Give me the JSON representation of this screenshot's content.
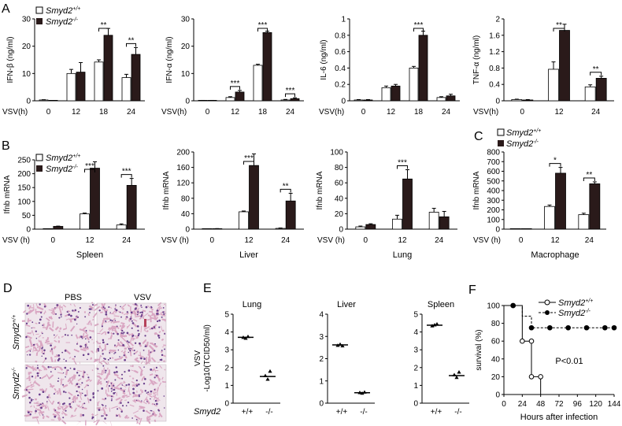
{
  "legend": {
    "wt": "Smyd2",
    "wt_sup": "+/+",
    "ko": "Smyd2",
    "ko_sup": "-/-"
  },
  "panel_letters": [
    "A",
    "B",
    "C",
    "D",
    "E",
    "F"
  ],
  "chart_data": [
    {
      "panel": "A",
      "type": "bar",
      "ylabel": "IFN-β  (ng/ml)",
      "xlabel_prefix": "VSV(h)",
      "categories": [
        "0",
        "12",
        "18",
        "24"
      ],
      "ylim": [
        0,
        30
      ],
      "yticks": [
        0,
        10,
        20,
        30
      ],
      "series": [
        {
          "name": "Smyd2+/+",
          "values": [
            0.3,
            10,
            14.2,
            8.5
          ],
          "errors": [
            0.1,
            1.5,
            0.8,
            1.2
          ]
        },
        {
          "name": "Smyd2-/-",
          "values": [
            0,
            10.5,
            24,
            17
          ],
          "errors": [
            0,
            3.5,
            2.5,
            2.5
          ]
        }
      ],
      "significance": [
        {
          "category": "18",
          "label": "**"
        },
        {
          "category": "24",
          "label": "**"
        }
      ]
    },
    {
      "panel": "A",
      "type": "bar",
      "ylabel": "IFN-α  (ng/ml)",
      "xlabel_prefix": "VSV(h)",
      "categories": [
        "0",
        "12",
        "18",
        "24"
      ],
      "ylim": [
        0,
        30
      ],
      "yticks": [
        0,
        10,
        20,
        30
      ],
      "series": [
        {
          "name": "Smyd2+/+",
          "values": [
            0.1,
            1.2,
            13,
            0.3
          ],
          "errors": [
            0.05,
            0.3,
            0.4,
            0.2
          ]
        },
        {
          "name": "Smyd2-/-",
          "values": [
            0.1,
            3.2,
            25,
            0.8
          ],
          "errors": [
            0.05,
            0.6,
            0.5,
            0.3
          ]
        }
      ],
      "significance": [
        {
          "category": "12",
          "label": "***"
        },
        {
          "category": "18",
          "label": "***"
        },
        {
          "category": "24",
          "label": "***"
        }
      ]
    },
    {
      "panel": "A",
      "type": "bar",
      "ylabel": "IL-6 (ng/ml)",
      "xlabel_prefix": "VSV(h)",
      "categories": [
        "0",
        "12",
        "18",
        "24"
      ],
      "ylim": [
        0,
        1.0
      ],
      "yticks": [
        0,
        0.2,
        0.4,
        0.6,
        0.8,
        1.0
      ],
      "series": [
        {
          "name": "Smyd2+/+",
          "values": [
            0.01,
            0.16,
            0.4,
            0.04
          ],
          "errors": [
            0.005,
            0.02,
            0.02,
            0.01
          ]
        },
        {
          "name": "Smyd2-/-",
          "values": [
            0.01,
            0.18,
            0.8,
            0.06
          ],
          "errors": [
            0.005,
            0.02,
            0.05,
            0.02
          ]
        }
      ],
      "significance": [
        {
          "category": "18",
          "label": "***"
        }
      ]
    },
    {
      "panel": "A",
      "type": "bar",
      "ylabel": "TNF-α (ng/ml)",
      "xlabel_prefix": "VSV(h)",
      "categories": [
        "0",
        "12",
        "24"
      ],
      "ylim": [
        0,
        2.0
      ],
      "yticks": [
        0,
        0.4,
        0.8,
        1.2,
        1.6,
        2.0
      ],
      "series": [
        {
          "name": "Smyd2+/+",
          "values": [
            0.03,
            0.77,
            0.34
          ],
          "errors": [
            0.01,
            0.18,
            0.05
          ]
        },
        {
          "name": "Smyd2-/-",
          "values": [
            0.02,
            1.72,
            0.55
          ],
          "errors": [
            0.01,
            0.15,
            0.05
          ]
        }
      ],
      "significance": [
        {
          "category": "12",
          "label": "**"
        },
        {
          "category": "24",
          "label": "**"
        }
      ]
    },
    {
      "panel": "B",
      "type": "bar",
      "ylabel": "Ifnb mRNA",
      "xlabel_prefix": "VSV (h)",
      "caption": "Spleen",
      "categories": [
        "0",
        "12",
        "24"
      ],
      "ylim": [
        0,
        250
      ],
      "yticks": [
        0,
        50,
        100,
        150,
        200,
        250
      ],
      "series": [
        {
          "name": "Smyd2+/+",
          "values": [
            0,
            55,
            15
          ],
          "errors": [
            0,
            3,
            4
          ]
        },
        {
          "name": "Smyd2-/-",
          "values": [
            10,
            220,
            158
          ],
          "errors": [
            1,
            23,
            25
          ]
        }
      ],
      "significance": [
        {
          "category": "12",
          "label": "***"
        },
        {
          "category": "24",
          "label": "***"
        }
      ]
    },
    {
      "panel": "B",
      "type": "bar",
      "ylabel": "Ifnb mRNA",
      "xlabel_prefix": "VSV (h)",
      "caption": "Liver",
      "categories": [
        "0",
        "12",
        "24"
      ],
      "ylim": [
        0,
        200
      ],
      "yticks": [
        0,
        40,
        80,
        120,
        160,
        200
      ],
      "series": [
        {
          "name": "Smyd2+/+",
          "values": [
            0,
            45,
            2
          ],
          "errors": [
            0,
            2,
            1
          ]
        },
        {
          "name": "Smyd2-/-",
          "values": [
            1,
            165,
            73
          ],
          "errors": [
            0.5,
            30,
            20
          ]
        }
      ],
      "significance": [
        {
          "category": "12",
          "label": "***"
        },
        {
          "category": "24",
          "label": "**"
        }
      ]
    },
    {
      "panel": "B",
      "type": "bar",
      "ylabel": "Ifnb mRNA",
      "xlabel_prefix": "VSV (h)",
      "caption": "Lung",
      "categories": [
        "0",
        "12",
        "24"
      ],
      "ylim": [
        0,
        100
      ],
      "yticks": [
        0,
        20,
        40,
        60,
        80,
        100
      ],
      "series": [
        {
          "name": "Smyd2+/+",
          "values": [
            3,
            13,
            22
          ],
          "errors": [
            1,
            5,
            5
          ]
        },
        {
          "name": "Smyd2-/-",
          "values": [
            6,
            65,
            16
          ],
          "errors": [
            1,
            12,
            7
          ]
        }
      ],
      "significance": [
        {
          "category": "12",
          "label": "***"
        }
      ]
    },
    {
      "panel": "C",
      "type": "bar",
      "ylabel": "Ifnb mRNA",
      "xlabel_prefix": "VSV (h)",
      "caption": "Macrophage",
      "categories": [
        "0",
        "12",
        "24"
      ],
      "ylim": [
        0,
        800
      ],
      "yticks": [
        0,
        100,
        200,
        300,
        400,
        500,
        600,
        700,
        800
      ],
      "series": [
        {
          "name": "Smyd2+/+",
          "values": [
            0,
            235,
            150
          ],
          "errors": [
            0,
            15,
            15
          ]
        },
        {
          "name": "Smyd2-/-",
          "values": [
            0,
            580,
            470
          ],
          "errors": [
            0,
            60,
            20
          ]
        }
      ],
      "significance": [
        {
          "category": "12",
          "label": "*"
        },
        {
          "category": "24",
          "label": "**"
        }
      ]
    },
    {
      "panel": "E",
      "type": "scatter",
      "title": "Lung",
      "ylabel_line1": "VSV",
      "ylabel_line2": "-Log10(TCID50/ml)",
      "group_label": "Smyd2",
      "categories": [
        "+/+",
        "-/-"
      ],
      "ylim": [
        0,
        5
      ],
      "yticks": [
        0,
        1,
        2,
        3,
        4,
        5
      ],
      "points": [
        [
          3.7,
          3.65,
          3.75
        ],
        [
          1.55,
          1.35,
          1.8
        ]
      ],
      "means": [
        3.7,
        1.5
      ]
    },
    {
      "panel": "E",
      "type": "scatter",
      "title": "Liver",
      "categories": [
        "+/+",
        "-/-"
      ],
      "ylim": [
        0,
        4
      ],
      "yticks": [
        0,
        1,
        2,
        3,
        4
      ],
      "points": [
        [
          2.6,
          2.65,
          2.58
        ],
        [
          0.48,
          0.45,
          0.5
        ]
      ],
      "means": [
        2.62,
        0.47
      ]
    },
    {
      "panel": "E",
      "type": "scatter",
      "title": "Spleen",
      "categories": [
        "+/+",
        "-/-"
      ],
      "ylim": [
        0,
        5
      ],
      "yticks": [
        0,
        1,
        2,
        3,
        4,
        5
      ],
      "points": [
        [
          4.35,
          4.4,
          4.45
        ],
        [
          1.6,
          1.45,
          1.75
        ]
      ],
      "means": [
        4.38,
        1.55
      ]
    },
    {
      "panel": "F",
      "type": "line",
      "ylabel": "survival (%)",
      "xlabel": "Hours after infection",
      "xticks": [
        0,
        24,
        48,
        72,
        96,
        120,
        144
      ],
      "ylim": [
        0,
        100
      ],
      "yticks": [
        0,
        20,
        40,
        60,
        80,
        100
      ],
      "annotation": "P<0.01",
      "series": [
        {
          "name": "Smyd2+/+",
          "steps": [
            [
              0,
              100
            ],
            [
              12,
              100
            ],
            [
              24,
              60
            ],
            [
              36,
              20
            ],
            [
              48,
              0
            ]
          ],
          "markers": [
            [
              12,
              100
            ],
            [
              24,
              60
            ],
            [
              36,
              60
            ],
            [
              36,
              20
            ],
            [
              48,
              20
            ]
          ]
        },
        {
          "name": "Smyd2-/-",
          "steps": [
            [
              0,
              100
            ],
            [
              12,
              100
            ],
            [
              24,
              88
            ],
            [
              36,
              75
            ],
            [
              144,
              75
            ]
          ],
          "markers": [
            [
              12,
              100
            ],
            [
              36,
              75
            ],
            [
              60,
              75
            ],
            [
              84,
              75
            ],
            [
              108,
              75
            ],
            [
              132,
              75
            ],
            [
              144,
              75
            ]
          ]
        }
      ]
    }
  ],
  "histology": {
    "col_labels": [
      "PBS",
      "VSV"
    ],
    "row_labels": [
      "Smyd2",
      "Smyd2"
    ],
    "row_sups": [
      "+/+",
      "-/-"
    ],
    "colors": {
      "tissue": "#d9a6c2",
      "background": "#efe6ec",
      "nuclei": "#6a3f8c",
      "blood": "#b5425b"
    }
  }
}
